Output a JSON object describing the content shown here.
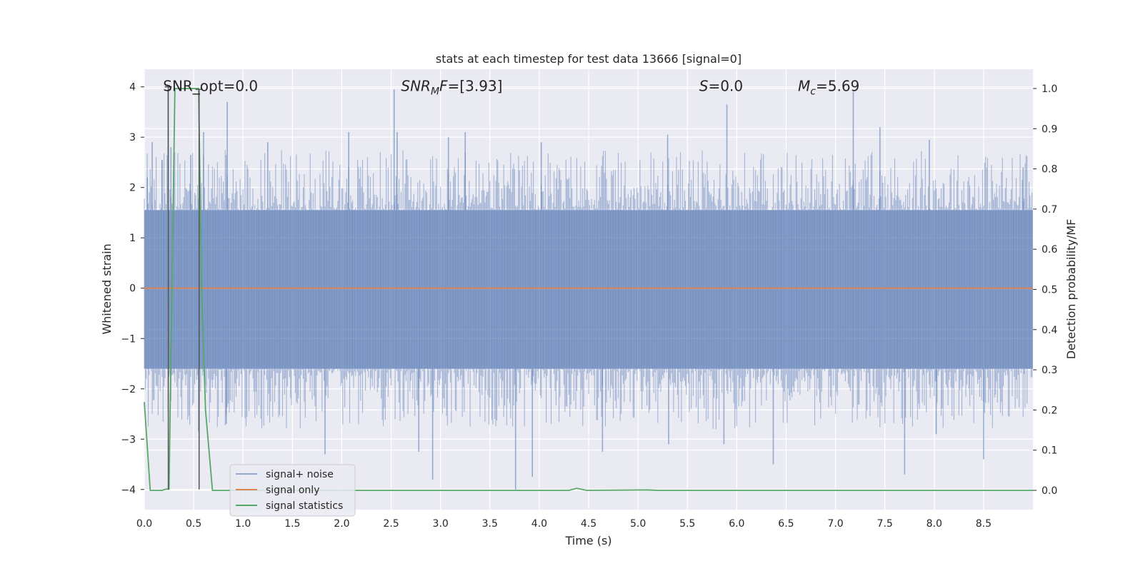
{
  "chart_data": {
    "type": "line",
    "title": "stats at each timestep for test data 13666 [signal=0]",
    "xlabel": "Time (s)",
    "ylabel": "Whitened strain",
    "ylabel_right": "Detection probability/MF",
    "xlim": [
      0.0,
      9.0
    ],
    "ylim": [
      -4.4,
      4.35
    ],
    "ylim_right": [
      -0.048,
      1.048
    ],
    "x_ticks": [
      0.0,
      0.5,
      1.0,
      1.5,
      2.0,
      2.5,
      3.0,
      3.5,
      4.0,
      4.5,
      5.0,
      5.5,
      6.0,
      6.5,
      7.0,
      7.5,
      8.0,
      8.5
    ],
    "x_tick_labels": [
      "0.0",
      "0.5",
      "1.0",
      "1.5",
      "2.0",
      "2.5",
      "3.0",
      "3.5",
      "4.0",
      "4.5",
      "5.0",
      "5.5",
      "6.0",
      "6.5",
      "7.0",
      "7.5",
      "8.0",
      "8.5"
    ],
    "y_ticks": [
      -4,
      -3,
      -2,
      -1,
      0,
      1,
      2,
      3,
      4
    ],
    "y_tick_labels": [
      "−4",
      "−3",
      "−2",
      "−1",
      "0",
      "1",
      "2",
      "3",
      "4"
    ],
    "y_ticks_right": [
      0.0,
      0.1,
      0.2,
      0.3,
      0.4,
      0.5,
      0.6,
      0.7,
      0.8,
      0.9,
      1.0
    ],
    "y_tick_labels_right": [
      "0.0",
      "0.1",
      "0.2",
      "0.3",
      "0.4",
      "0.5",
      "0.6",
      "0.7",
      "0.8",
      "0.9",
      "1.0"
    ],
    "annotations": [
      {
        "id": "snr-opt",
        "text": "SNR_opt=0.0",
        "x": 0.19,
        "y": 4.0
      },
      {
        "id": "snr-mf",
        "text": "SNR_MF=[3.93]",
        "x": 2.6,
        "y": 4.0
      },
      {
        "id": "s-value",
        "text": "S=0.0",
        "x": 5.62,
        "y": 4.0
      },
      {
        "id": "mc-value",
        "text": "M_c=5.69",
        "x": 6.62,
        "y": 4.0
      }
    ],
    "legend": {
      "position": "lower-left",
      "entries": [
        "signal+ noise",
        "signal only",
        "signal statistics"
      ]
    },
    "series": [
      {
        "name": "signal+ noise",
        "color": "#4c72b0",
        "kind": "noise",
        "x_range": [
          0.0,
          9.0
        ],
        "envelope_high": 1.55,
        "envelope_low": -1.6,
        "spikes": [
          {
            "x": 0.03,
            "y": 2.2
          },
          {
            "x": 0.08,
            "y": 2.9
          },
          {
            "x": 0.18,
            "y": 2.55
          },
          {
            "x": 0.24,
            "y": 3.95
          },
          {
            "x": 0.27,
            "y": 2.8
          },
          {
            "x": 0.47,
            "y": 2.65
          },
          {
            "x": 0.6,
            "y": 3.1
          },
          {
            "x": 0.84,
            "y": 3.7
          },
          {
            "x": 1.25,
            "y": 2.9
          },
          {
            "x": 2.07,
            "y": 3.1
          },
          {
            "x": 2.53,
            "y": 3.95
          },
          {
            "x": 2.56,
            "y": 3.1
          },
          {
            "x": 3.08,
            "y": 3.0
          },
          {
            "x": 3.25,
            "y": 3.1
          },
          {
            "x": 4.02,
            "y": 2.9
          },
          {
            "x": 5.3,
            "y": 3.05
          },
          {
            "x": 5.9,
            "y": 3.65
          },
          {
            "x": 7.18,
            "y": 3.9
          },
          {
            "x": 7.45,
            "y": 3.2
          },
          {
            "x": 7.95,
            "y": 2.95
          },
          {
            "x": 8.9,
            "y": 2.4
          },
          {
            "x": 0.55,
            "y": -2.85
          },
          {
            "x": 0.83,
            "y": -2.7
          },
          {
            "x": 1.83,
            "y": -3.3
          },
          {
            "x": 2.78,
            "y": -3.25
          },
          {
            "x": 2.92,
            "y": -3.8
          },
          {
            "x": 3.76,
            "y": -4.0
          },
          {
            "x": 3.93,
            "y": -3.75
          },
          {
            "x": 4.64,
            "y": -3.25
          },
          {
            "x": 5.31,
            "y": -3.1
          },
          {
            "x": 5.87,
            "y": -3.1
          },
          {
            "x": 6.37,
            "y": -3.5
          },
          {
            "x": 7.7,
            "y": -3.7
          },
          {
            "x": 8.5,
            "y": -3.4
          },
          {
            "x": 8.02,
            "y": -2.9
          }
        ]
      },
      {
        "name": "signal only",
        "color": "#dd8452",
        "x": [
          0.0,
          9.0
        ],
        "y": [
          0.0,
          0.0
        ]
      },
      {
        "name": "signal statistics",
        "color": "#55a868",
        "axis": "right",
        "x": [
          0.0,
          0.06,
          0.18,
          0.22,
          0.25,
          0.31,
          0.55,
          0.58,
          0.62,
          0.69,
          4.3,
          4.38,
          4.48,
          5.1,
          5.2,
          9.0
        ],
        "y": [
          0.22,
          0.0,
          0.0,
          0.003,
          0.003,
          1.0,
          1.0,
          0.5,
          0.2,
          0.0,
          0.0,
          0.005,
          0.0,
          0.001,
          0.0,
          0.0
        ]
      },
      {
        "name": "markers",
        "color": "#555555",
        "kind": "vlines",
        "lines": [
          {
            "x": 0.243,
            "y_min": -4.0,
            "y_max": 4.0
          },
          {
            "x": 0.555,
            "y_min": -4.0,
            "y_max": 3.95
          }
        ]
      }
    ]
  }
}
